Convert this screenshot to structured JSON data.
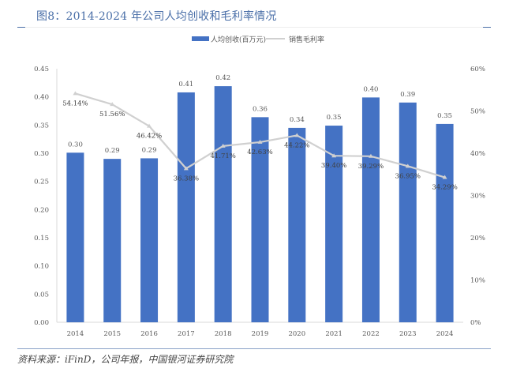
{
  "header": {
    "title": "图8：2014-2024 年公司人均创收和毛利率情况"
  },
  "source": {
    "text": "资料来源：iFinD，公司年报，中国银河证券研究院"
  },
  "colors": {
    "bar": "#4472c4",
    "line": "#d0d0d0",
    "title": "#4a6fa8",
    "axis_text": "#595959"
  },
  "chart_data": {
    "type": "bar+line",
    "title": "图8：2014-2024 年公司人均创收和毛利率情况",
    "categories": [
      "2014",
      "2015",
      "2016",
      "2017",
      "2018",
      "2019",
      "2020",
      "2021",
      "2022",
      "2023",
      "2024"
    ],
    "series": [
      {
        "name": "人均创收(百万元)",
        "type": "bar",
        "axis": "left",
        "values": [
          0.301,
          0.29,
          0.291,
          0.408,
          0.419,
          0.364,
          0.345,
          0.349,
          0.399,
          0.39,
          0.352
        ],
        "labels": [
          "0.30",
          "0.29",
          "0.29",
          "0.41",
          "0.42",
          "0.36",
          "0.34",
          "0.35",
          "0.40",
          "0.39",
          "0.35"
        ]
      },
      {
        "name": "销售毛利率",
        "type": "line",
        "axis": "right",
        "values": [
          54.14,
          51.56,
          46.42,
          36.38,
          41.71,
          42.63,
          44.22,
          39.4,
          39.29,
          36.95,
          34.29
        ],
        "labels": [
          "54.14%",
          "51.56%",
          "46.42%",
          "36.38%",
          "41.71%",
          "42.63%",
          "44.22%",
          "39.40%",
          "39.29%",
          "36.95%",
          "34.29%"
        ]
      }
    ],
    "left_axis": {
      "ylim": [
        0,
        0.45
      ],
      "ticks": [
        "0.00",
        "0.05",
        "0.10",
        "0.15",
        "0.20",
        "0.25",
        "0.30",
        "0.35",
        "0.40",
        "0.45"
      ]
    },
    "right_axis": {
      "ylim": [
        0,
        60
      ],
      "ticks": [
        "0%",
        "10%",
        "20%",
        "30%",
        "40%",
        "50%",
        "60%"
      ]
    },
    "legend": {
      "position": "top-center",
      "items": [
        "人均创收(百万元)",
        "销售毛利率"
      ]
    },
    "grid": false,
    "xlabel": "",
    "ylabel": ""
  }
}
